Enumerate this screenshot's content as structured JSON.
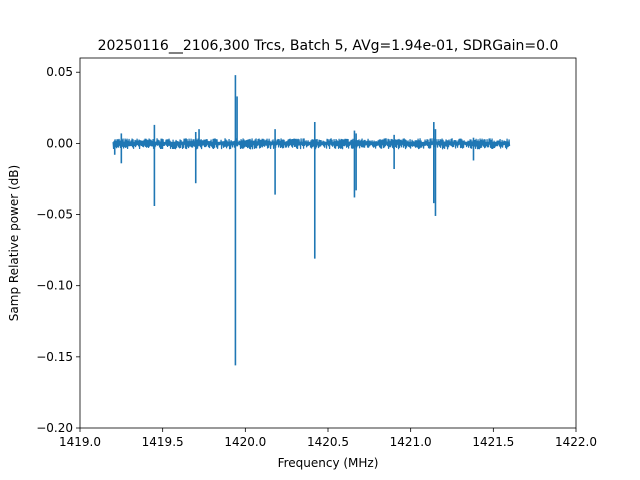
{
  "chart_data": {
    "type": "line",
    "title": "20250116__2106,300 Trcs, Batch 5, AVg=1.94e-01, SDRGain=0.0",
    "xlabel": "Frequency (MHz)",
    "ylabel": "Samp Relative power (dB)",
    "xlim": [
      1419.0,
      1422.0
    ],
    "ylim": [
      -0.2,
      0.06
    ],
    "x_ticks": [
      1419.0,
      1419.5,
      1420.0,
      1420.5,
      1421.0,
      1421.5,
      1422.0
    ],
    "x_tick_labels": [
      "1419.0",
      "1419.5",
      "1420.0",
      "1420.5",
      "1421.0",
      "1421.5",
      "1422.0"
    ],
    "y_ticks": [
      0.05,
      0.0,
      -0.05,
      -0.1,
      -0.15,
      -0.2
    ],
    "y_tick_labels": [
      "0.05",
      "0.00",
      "−0.05",
      "−0.10",
      "−0.15",
      "−0.20"
    ],
    "grid": false,
    "series_color": "#1f77b4",
    "x_range": [
      1419.2,
      1421.6
    ],
    "noise_amplitude": 0.003,
    "spikes": [
      {
        "x": 1419.21,
        "min": -0.008,
        "max": 0.002
      },
      {
        "x": 1419.25,
        "min": -0.014,
        "max": 0.007
      },
      {
        "x": 1419.45,
        "min": -0.044,
        "max": 0.013
      },
      {
        "x": 1419.7,
        "min": -0.028,
        "max": 0.008
      },
      {
        "x": 1419.72,
        "min": -0.002,
        "max": 0.01
      },
      {
        "x": 1419.94,
        "min": -0.156,
        "max": 0.048
      },
      {
        "x": 1419.95,
        "min": -0.002,
        "max": 0.033
      },
      {
        "x": 1420.18,
        "min": -0.036,
        "max": 0.01
      },
      {
        "x": 1420.42,
        "min": -0.081,
        "max": 0.015
      },
      {
        "x": 1420.66,
        "min": -0.038,
        "max": 0.009
      },
      {
        "x": 1420.67,
        "min": -0.033,
        "max": 0.007
      },
      {
        "x": 1420.9,
        "min": -0.018,
        "max": 0.006
      },
      {
        "x": 1421.14,
        "min": -0.042,
        "max": 0.015
      },
      {
        "x": 1421.15,
        "min": -0.051,
        "max": 0.01
      },
      {
        "x": 1421.38,
        "min": -0.012,
        "max": 0.004
      }
    ]
  }
}
